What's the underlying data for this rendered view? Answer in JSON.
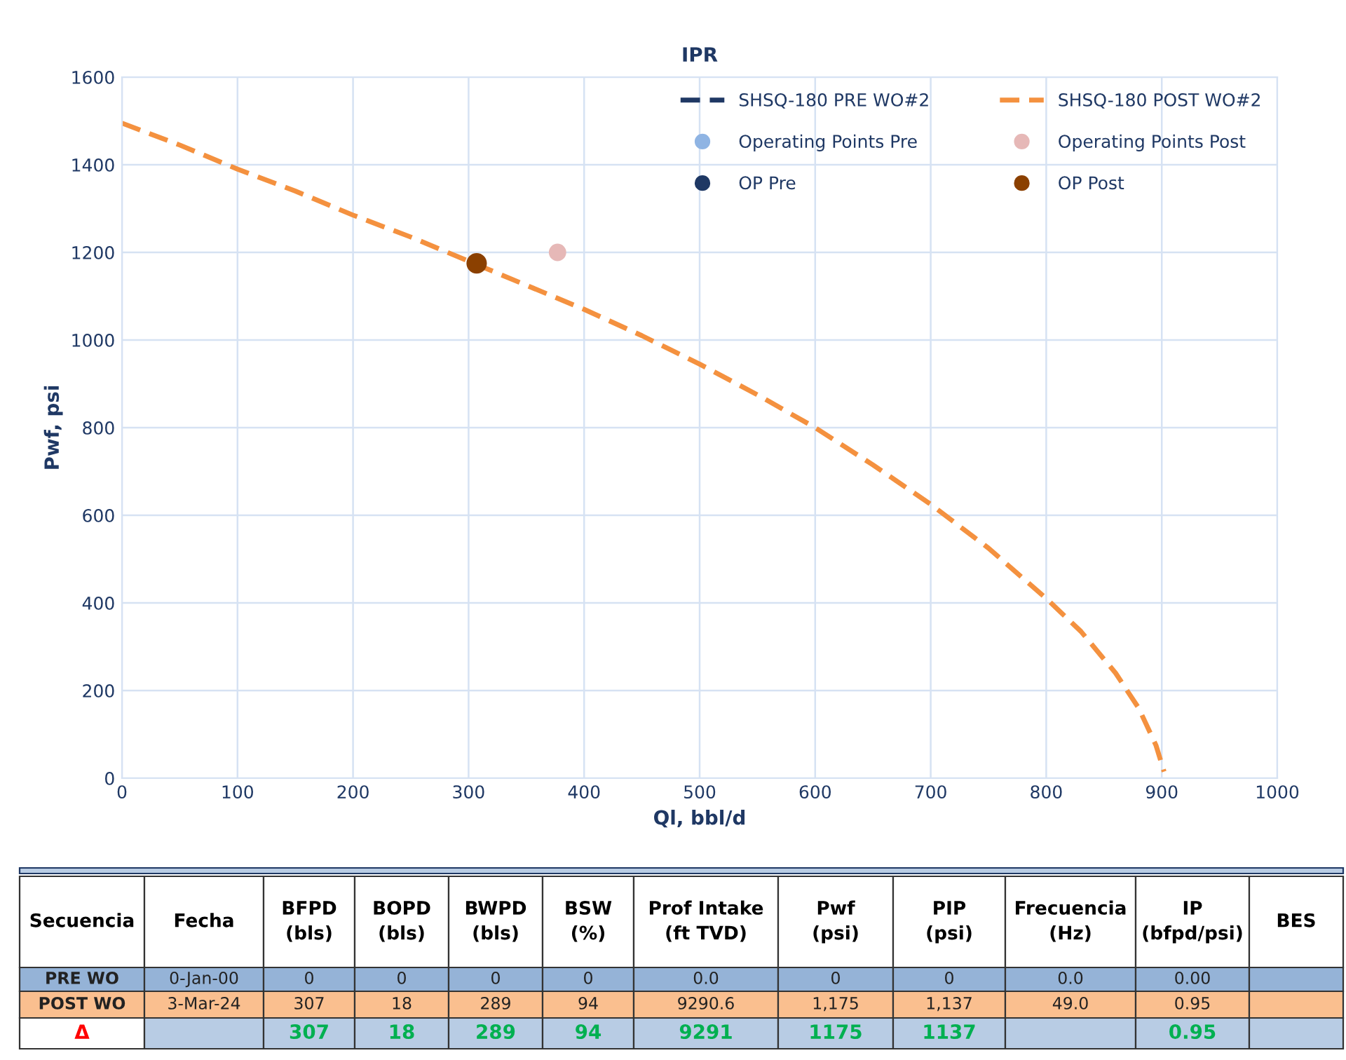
{
  "chart_data": {
    "type": "line",
    "title": "IPR",
    "xlabel": "Ql, bbl/d",
    "ylabel": "Pwf, psi",
    "xlim": [
      0,
      1000
    ],
    "xticks": [
      0,
      100,
      200,
      300,
      400,
      500,
      600,
      700,
      800,
      900,
      1000
    ],
    "ylim": [
      0,
      1600
    ],
    "yticks": [
      0,
      200,
      400,
      600,
      800,
      1000,
      1200,
      1400,
      1600
    ],
    "grid": true,
    "legend": "top right",
    "line_style": "dashed",
    "series": [
      {
        "name": "SHSQ-180 PRE WO#2",
        "color": "#1f3864"
      },
      {
        "name": "Operating Points Pre",
        "type": "scatter",
        "marker": "circle",
        "color": "#8fb4e3"
      },
      {
        "name": "OP Pre",
        "type": "scatter",
        "marker": "circle",
        "color": "#1f3864"
      },
      {
        "name": "SHSQ-180 POST WO#2",
        "color": "#f4913f",
        "x": [
          0,
          50,
          100,
          150,
          200,
          250,
          300,
          350,
          400,
          450,
          500,
          550,
          600,
          650,
          700,
          750,
          800,
          830,
          860,
          880,
          895,
          902
        ],
        "values": [
          1495,
          1445,
          1390,
          1340,
          1285,
          1235,
          1180,
          1125,
          1070,
          1010,
          945,
          875,
          800,
          715,
          625,
          525,
          410,
          335,
          240,
          160,
          75,
          15
        ]
      },
      {
        "name": "Operating Points Post",
        "type": "scatter",
        "marker": "circle",
        "color": "#e6b8b7",
        "x": [
          377
        ],
        "values": [
          1200
        ]
      },
      {
        "name": "OP Post",
        "type": "scatter",
        "marker": "circle",
        "color": "#8b4000",
        "x": [
          307
        ],
        "values": [
          1175
        ]
      }
    ],
    "annotations": [
      "Secuencia",
      "Fecha",
      "BFPD\n(bls)",
      "BOPD\n(bls)",
      "BWPD\n(bls)",
      "BSW\n(%)",
      "Prof Intake\n(ft TVD)",
      "Pwf\n(psi)",
      "PIP\n(psi)",
      "Frecuencia\n(Hz)",
      "IP\n(bfpd/psi)",
      "BES",
      "PRE WO",
      "0-Jan-00",
      "0",
      "0",
      "0",
      "0",
      "0.0",
      "0",
      "0",
      "0.0",
      "0.00",
      "POST WO",
      "3-Mar-24",
      "307",
      "18",
      "289",
      "94",
      "9290.6",
      "1,175",
      "1,137",
      "49.0",
      "0.95",
      "Δ",
      "307",
      "18",
      "289",
      "94",
      "9291",
      "1175",
      "1137",
      "0.95"
    ]
  }
}
